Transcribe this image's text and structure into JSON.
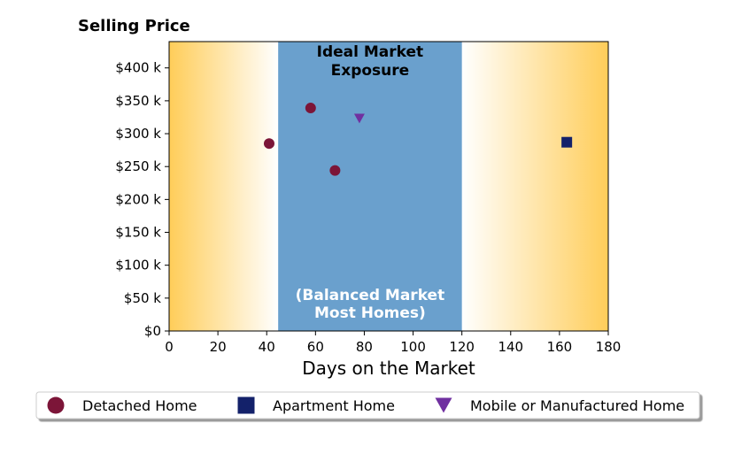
{
  "chart_data": {
    "type": "scatter",
    "title": "Selling Price",
    "xlabel": "Days on the Market",
    "ylabel": "",
    "xlim": [
      0,
      180
    ],
    "ylim": [
      0,
      440000
    ],
    "x_ticks": [
      0,
      20,
      40,
      60,
      80,
      100,
      120,
      140,
      160,
      180
    ],
    "y_ticks": [
      0,
      50000,
      100000,
      150000,
      200000,
      250000,
      300000,
      350000,
      400000
    ],
    "y_tick_labels": [
      "$0",
      "$50 k",
      "$100 k",
      "$150 k",
      "$200 k",
      "$250 k",
      "$300 k",
      "$350 k",
      "$400 k"
    ],
    "grid": false,
    "legend_position": "bottom",
    "bands": [
      {
        "x_start": 44.7,
        "x_end": 120,
        "color": "#6aa0cd",
        "label_top": [
          "Ideal Market",
          "Exposure"
        ],
        "label_bottom": [
          "(Balanced Market",
          "Most Homes)"
        ]
      }
    ],
    "background_gradient": {
      "edge_color": "#ffcd59",
      "inner_color": "#ffffff",
      "left_fade_end": 44.7,
      "right_fade_start": 120
    },
    "series": [
      {
        "name": "Detached Home",
        "marker": "circle",
        "color": "#7c1538",
        "points": [
          {
            "x": 41,
            "y": 285000
          },
          {
            "x": 58,
            "y": 339000
          },
          {
            "x": 68,
            "y": 244000
          }
        ]
      },
      {
        "name": "Apartment Home",
        "marker": "square",
        "color": "#13216a",
        "points": [
          {
            "x": 163,
            "y": 287000
          }
        ]
      },
      {
        "name": "Mobile or Manufactured Home",
        "marker": "triangle-down",
        "color": "#7030a0",
        "points": [
          {
            "x": 78,
            "y": 323000
          }
        ]
      }
    ]
  }
}
